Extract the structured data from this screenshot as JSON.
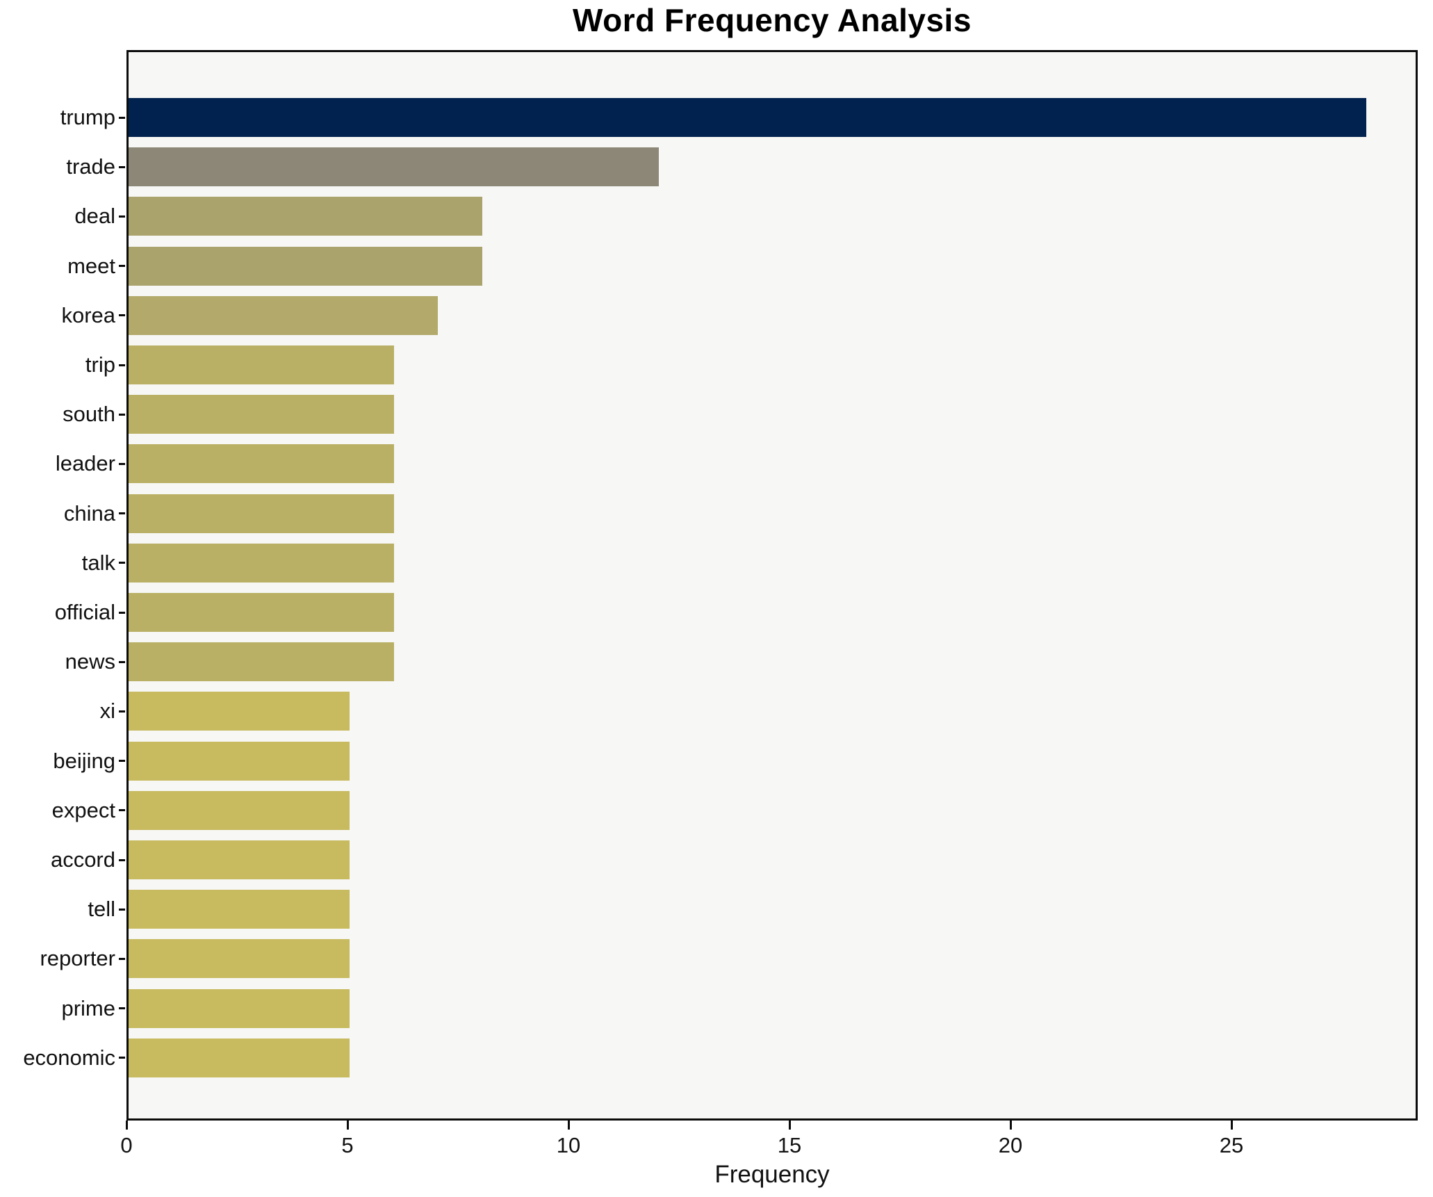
{
  "title": "Word Frequency Analysis",
  "xlabel": "Frequency",
  "chart_data": {
    "type": "bar",
    "orientation": "horizontal",
    "title": "Word Frequency Analysis",
    "xlabel": "Frequency",
    "ylabel": "",
    "categories": [
      "trump",
      "trade",
      "deal",
      "meet",
      "korea",
      "trip",
      "south",
      "leader",
      "china",
      "talk",
      "official",
      "news",
      "xi",
      "beijing",
      "expect",
      "accord",
      "tell",
      "reporter",
      "prime",
      "economic"
    ],
    "values": [
      28,
      12,
      8,
      8,
      7,
      6,
      6,
      6,
      6,
      6,
      6,
      6,
      5,
      5,
      5,
      5,
      5,
      5,
      5,
      5
    ],
    "bar_colors": [
      "#01224e",
      "#8d8778",
      "#aba36c",
      "#aba36c",
      "#b2a96b",
      "#bab065",
      "#bab065",
      "#bab065",
      "#bab065",
      "#bab065",
      "#bab065",
      "#bab065",
      "#c7ba5f",
      "#c7ba5f",
      "#c7ba5f",
      "#c7ba5f",
      "#c7ba5f",
      "#c7ba5f",
      "#c7ba5f",
      "#c7ba5f"
    ],
    "xticks": [
      0,
      5,
      10,
      15,
      20,
      25
    ],
    "xlim": [
      0,
      29.2
    ],
    "grid": false,
    "legend": false,
    "plot_background": "#f7f7f5",
    "figure_background": "#ffffff",
    "colormap_note": "cividis-style: highest value navy, lower values khaki"
  }
}
